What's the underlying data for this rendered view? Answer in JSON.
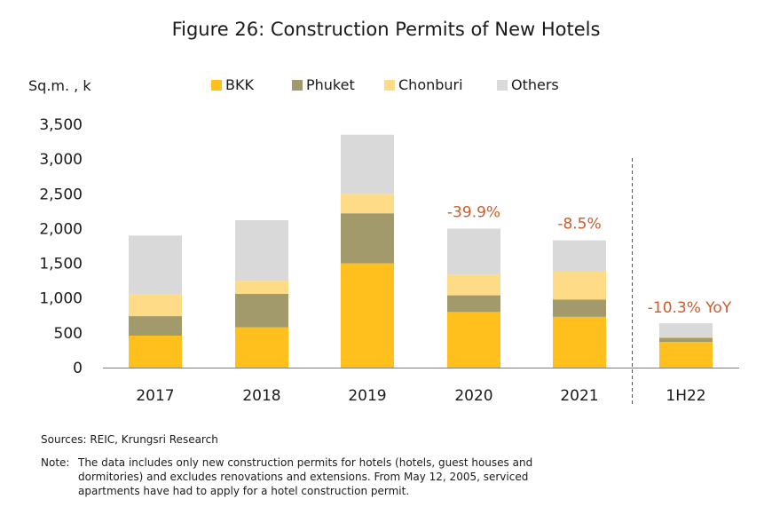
{
  "chart_data": {
    "type": "bar",
    "stacked": true,
    "title": "Figure 26: Construction Permits of New Hotels",
    "ylabel": "Sq.m. , k",
    "ylim": [
      0,
      3500
    ],
    "yticks": [
      0,
      500,
      1000,
      1500,
      2000,
      2500,
      3000,
      3500
    ],
    "ytick_labels": [
      "0",
      "500",
      "1,000",
      "1,500",
      "2,000",
      "2,500",
      "3,000",
      "3,500"
    ],
    "categories": [
      "2017",
      "2018",
      "2019",
      "2020",
      "2021",
      "1H22"
    ],
    "series": [
      {
        "name": "BKK",
        "color": "#ffc01e",
        "values": [
          460,
          580,
          1500,
          800,
          730,
          370
        ]
      },
      {
        "name": "Phuket",
        "color": "#a39a6b",
        "values": [
          280,
          480,
          720,
          240,
          250,
          60
        ]
      },
      {
        "name": "Chonburi",
        "color": "#fedc87",
        "values": [
          310,
          190,
          280,
          300,
          400,
          10
        ]
      },
      {
        "name": "Others",
        "color": "#d9d9d9",
        "values": [
          850,
          870,
          850,
          660,
          450,
          200
        ]
      }
    ],
    "annotations": [
      {
        "category": "2020",
        "text": "-39.9%"
      },
      {
        "category": "2021",
        "text": "-8.5%"
      },
      {
        "category": "1H22",
        "text": "-10.3% YoY"
      }
    ],
    "separator_before": "1H22",
    "legend_position": "top"
  },
  "footer": {
    "sources": "Sources: REIC, Krungsri Research",
    "note_label": "Note:",
    "note_text": "The data includes only new construction permits for hotels (hotels, guest houses and dormitories) and excludes renovations and extensions. From May 12, 2005, serviced apartments have had to apply for a hotel construction permit."
  }
}
